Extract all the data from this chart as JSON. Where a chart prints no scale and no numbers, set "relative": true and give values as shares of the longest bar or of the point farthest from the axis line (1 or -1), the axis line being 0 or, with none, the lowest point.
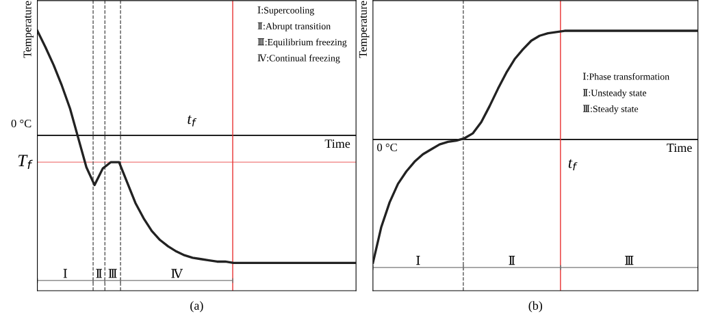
{
  "chart_data": [
    {
      "type": "line",
      "relative": true,
      "title": "(a)",
      "xlabel": "Time",
      "ylabel": "Temperature",
      "color": "#222222",
      "categories": [
        null,
        null,
        null,
        null,
        null,
        null,
        null,
        null,
        null,
        null,
        null,
        null,
        null,
        null,
        null,
        null,
        null,
        null,
        null,
        null,
        null,
        null,
        null,
        null,
        null,
        null,
        null,
        null,
        null,
        null,
        null,
        null,
        null,
        null,
        null,
        null,
        null,
        null,
        null,
        null
      ],
      "values": [
        0.82,
        0.69,
        0.55,
        0.39,
        0.21,
        -0.02,
        -0.25,
        -0.39,
        -0.26,
        -0.21,
        -0.21,
        -0.37,
        -0.53,
        -0.65,
        -0.75,
        -0.82,
        -0.87,
        -0.91,
        -0.94,
        -0.96,
        -0.97,
        -0.98,
        -0.99,
        -0.99,
        -1,
        -1,
        -1,
        -1,
        -1,
        -1,
        -1,
        -1,
        -1,
        -1,
        -1,
        -1,
        -1,
        -1,
        -1,
        -1
      ],
      "ref_lines": [
        {
          "axis": "y",
          "value": 0,
          "label": "0 °C",
          "color": "#000000",
          "line_style": "solid"
        },
        {
          "axis": "y",
          "value": -0.21,
          "label": "T$_{f}$",
          "color": "#f4a0a0",
          "line_style": "solid"
        }
      ],
      "annotations": [
        "t$_{f}$",
        "Ⅰ",
        "Ⅱ",
        "Ⅲ",
        "Ⅳ",
        "Ⅰ:Supercooling",
        "Ⅱ:Abrupt transition",
        "Ⅲ:Equilibrium freezing",
        "Ⅳ:Continual freezing"
      ]
    },
    {
      "type": "line",
      "relative": true,
      "title": "(b)",
      "xlabel": "Time",
      "ylabel": "Temperature",
      "color": "#222222",
      "categories": [
        null,
        null,
        null,
        null,
        null,
        null,
        null,
        null,
        null,
        null,
        null,
        null,
        null,
        null,
        null,
        null,
        null,
        null,
        null,
        null,
        null,
        null,
        null,
        null,
        null,
        null,
        null,
        null,
        null,
        null,
        null,
        null,
        null,
        null,
        null,
        null,
        null,
        null,
        null,
        null
      ],
      "values": [
        -1,
        -0.71,
        -0.51,
        -0.36,
        -0.26,
        -0.18,
        -0.12,
        -0.08,
        -0.04,
        -0.02,
        -0.01,
        0.01,
        0.05,
        0.14,
        0.27,
        0.41,
        0.54,
        0.65,
        0.73,
        0.8,
        0.84,
        0.86,
        0.87,
        0.88,
        0.88,
        0.88,
        0.88,
        0.88,
        0.88,
        0.88,
        0.88,
        0.88,
        0.88,
        0.88,
        0.88,
        0.88,
        0.88,
        0.88,
        0.88,
        0.88
      ],
      "ref_lines": [
        {
          "axis": "y",
          "value": 0,
          "label": "0 °C",
          "color": "#000000",
          "line_style": "solid"
        }
      ],
      "annotations": [
        "t$_{f}$",
        "Ⅰ",
        "Ⅱ",
        "Ⅲ",
        "Ⅰ:Phase transformation",
        "Ⅱ:Unsteady state",
        "Ⅲ:Steady state"
      ]
    }
  ]
}
